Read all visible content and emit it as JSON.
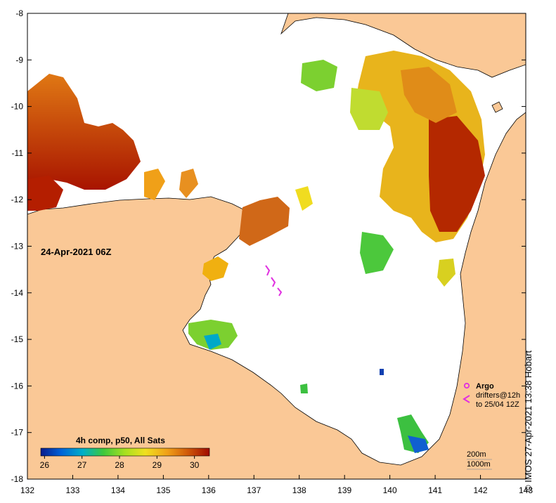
{
  "map": {
    "date_label": "24-Apr-2021 06Z",
    "colorbar": {
      "title": "4h comp, p50, All Sats",
      "ticks": [
        "26",
        "27",
        "28",
        "29",
        "30"
      ],
      "min": 25.9,
      "max": 30.4,
      "colors": [
        "#0a1b8c",
        "#0062d8",
        "#00b0c8",
        "#3ec83c",
        "#a8e020",
        "#f0e020",
        "#f0a018",
        "#d05a0a",
        "#a00a00"
      ]
    },
    "x_ticks": [
      "132",
      "133",
      "134",
      "135",
      "136",
      "137",
      "138",
      "139",
      "140",
      "141",
      "142",
      "143"
    ],
    "y_ticks": [
      "-8",
      "-9",
      "-10",
      "-11",
      "-12",
      "-13",
      "-14",
      "-15",
      "-16",
      "-17",
      "-18"
    ],
    "legend": {
      "argo": "Argo",
      "drifters_line1": "drifters@12h",
      "drifters_line2": "to 25/04 12Z",
      "contour_200": "200m",
      "contour_1000": "1000m"
    },
    "credit": "© IMOS 27-Apr-2021 13:38 Hobart",
    "colors": {
      "land": "#fac896",
      "water": "#ffffff",
      "argo": "#e030e0",
      "drifters": "#e030e0"
    }
  }
}
